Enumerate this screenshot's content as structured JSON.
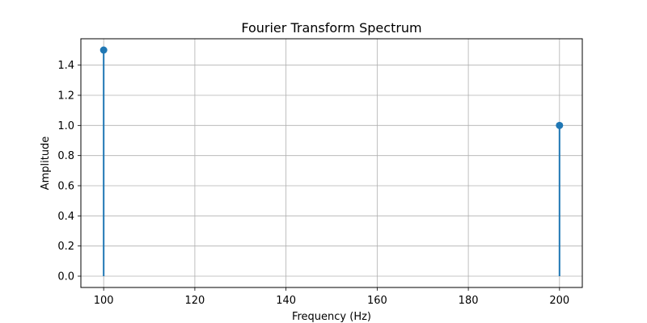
{
  "chart_data": {
    "type": "stem",
    "title": "Fourier Transform Spectrum",
    "xlabel": "Frequency (Hz)",
    "ylabel": "Amplitude",
    "xlim": [
      95,
      205
    ],
    "ylim": [
      -0.075,
      1.575
    ],
    "xticks": [
      100,
      120,
      140,
      160,
      180,
      200
    ],
    "yticks": [
      0.0,
      0.2,
      0.4,
      0.6,
      0.8,
      1.0,
      1.2,
      1.4
    ],
    "grid": true,
    "series": [
      {
        "x": [
          100,
          200
        ],
        "y": [
          1.5,
          1.0
        ],
        "color": "#1f77b4"
      }
    ]
  }
}
